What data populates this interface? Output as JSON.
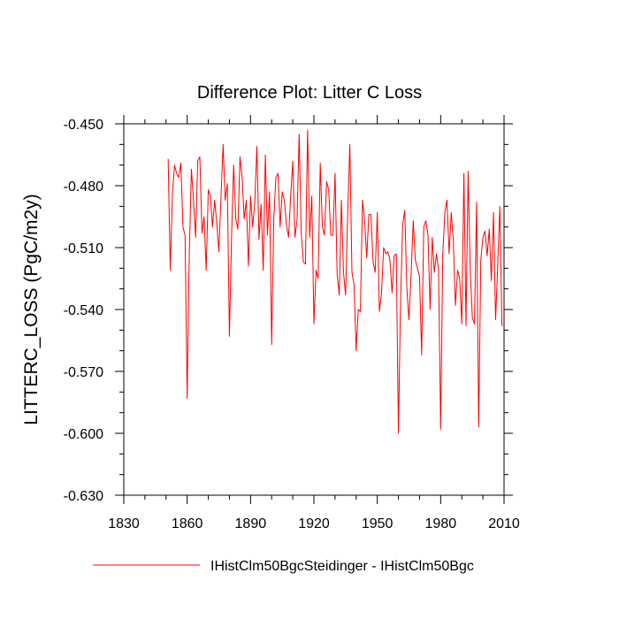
{
  "chart_data": {
    "type": "line",
    "title": "Difference Plot: Litter C Loss",
    "xlabel": "",
    "ylabel": "LITTERC_LOSS  (PgC/m2y)",
    "xlim": [
      1830,
      2010
    ],
    "ylim": [
      -0.63,
      -0.45
    ],
    "x_ticks": [
      1830,
      1860,
      1890,
      1920,
      1950,
      1980,
      2010
    ],
    "x_tick_labels": [
      "1830",
      "1860",
      "1890",
      "1920",
      "1950",
      "1980",
      "2010"
    ],
    "y_ticks": [
      -0.45,
      -0.48,
      -0.51,
      -0.54,
      -0.57,
      -0.6,
      -0.63
    ],
    "y_tick_labels": [
      "-0.450",
      "-0.480",
      "-0.510",
      "-0.540",
      "-0.570",
      "-0.600",
      "-0.630"
    ],
    "legend_position": "bottom",
    "grid": false,
    "series": [
      {
        "name": "IHistClm50BgcSteidinger - IHistClm50Bgc",
        "color": "#ff0000",
        "x": [
          1851,
          1852,
          1853,
          1854,
          1855,
          1856,
          1857,
          1858,
          1859,
          1860,
          1861,
          1862,
          1863,
          1864,
          1865,
          1866,
          1867,
          1868,
          1869,
          1870,
          1871,
          1872,
          1873,
          1874,
          1875,
          1876,
          1877,
          1878,
          1879,
          1880,
          1881,
          1882,
          1883,
          1884,
          1885,
          1886,
          1887,
          1888,
          1889,
          1890,
          1891,
          1892,
          1893,
          1894,
          1895,
          1896,
          1897,
          1898,
          1899,
          1900,
          1901,
          1902,
          1903,
          1904,
          1905,
          1906,
          1907,
          1908,
          1909,
          1910,
          1911,
          1912,
          1913,
          1914,
          1915,
          1916,
          1917,
          1918,
          1919,
          1920,
          1921,
          1922,
          1923,
          1924,
          1925,
          1926,
          1927,
          1928,
          1929,
          1930,
          1931,
          1932,
          1933,
          1934,
          1935,
          1936,
          1937,
          1938,
          1939,
          1940,
          1941,
          1942,
          1943,
          1944,
          1945,
          1946,
          1947,
          1948,
          1949,
          1950,
          1951,
          1952,
          1953,
          1954,
          1955,
          1956,
          1957,
          1958,
          1959,
          1960,
          1961,
          1962,
          1963,
          1964,
          1965,
          1966,
          1967,
          1968,
          1969,
          1970,
          1971,
          1972,
          1973,
          1974,
          1975,
          1976,
          1977,
          1978,
          1979,
          1980,
          1981,
          1982,
          1983,
          1984,
          1985,
          1986,
          1987,
          1988,
          1989,
          1990,
          1991,
          1992,
          1993,
          1994,
          1995,
          1996,
          1997,
          1998,
          1999,
          2000,
          2001,
          2002,
          2003,
          2004,
          2005,
          2006,
          2007,
          2008,
          2009
        ],
        "values": [
          -0.467,
          -0.521,
          -0.485,
          -0.47,
          -0.474,
          -0.476,
          -0.469,
          -0.5,
          -0.504,
          -0.583,
          -0.513,
          -0.472,
          -0.487,
          -0.505,
          -0.468,
          -0.466,
          -0.503,
          -0.495,
          -0.521,
          -0.482,
          -0.485,
          -0.5,
          -0.487,
          -0.498,
          -0.512,
          -0.486,
          -0.46,
          -0.487,
          -0.479,
          -0.553,
          -0.505,
          -0.47,
          -0.496,
          -0.501,
          -0.466,
          -0.476,
          -0.496,
          -0.487,
          -0.519,
          -0.485,
          -0.5,
          -0.488,
          -0.461,
          -0.506,
          -0.489,
          -0.521,
          -0.465,
          -0.504,
          -0.483,
          -0.557,
          -0.496,
          -0.476,
          -0.474,
          -0.5,
          -0.483,
          -0.487,
          -0.499,
          -0.505,
          -0.485,
          -0.468,
          -0.505,
          -0.497,
          -0.455,
          -0.503,
          -0.517,
          -0.518,
          -0.453,
          -0.505,
          -0.485,
          -0.547,
          -0.521,
          -0.525,
          -0.469,
          -0.5,
          -0.504,
          -0.478,
          -0.482,
          -0.504,
          -0.504,
          -0.474,
          -0.523,
          -0.533,
          -0.487,
          -0.522,
          -0.533,
          -0.493,
          -0.46,
          -0.522,
          -0.528,
          -0.56,
          -0.54,
          -0.541,
          -0.487,
          -0.497,
          -0.515,
          -0.494,
          -0.494,
          -0.517,
          -0.522,
          -0.493,
          -0.541,
          -0.532,
          -0.51,
          -0.513,
          -0.512,
          -0.516,
          -0.532,
          -0.514,
          -0.513,
          -0.6,
          -0.537,
          -0.499,
          -0.492,
          -0.53,
          -0.545,
          -0.523,
          -0.497,
          -0.516,
          -0.52,
          -0.524,
          -0.562,
          -0.5,
          -0.497,
          -0.504,
          -0.54,
          -0.505,
          -0.522,
          -0.513,
          -0.521,
          -0.598,
          -0.513,
          -0.493,
          -0.487,
          -0.513,
          -0.493,
          -0.507,
          -0.538,
          -0.521,
          -0.525,
          -0.547,
          -0.474,
          -0.548,
          -0.473,
          -0.521,
          -0.544,
          -0.547,
          -0.488,
          -0.597,
          -0.516,
          -0.505,
          -0.502,
          -0.514,
          -0.501,
          -0.526,
          -0.493,
          -0.545,
          -0.519,
          -0.49,
          -0.548
        ]
      }
    ]
  }
}
